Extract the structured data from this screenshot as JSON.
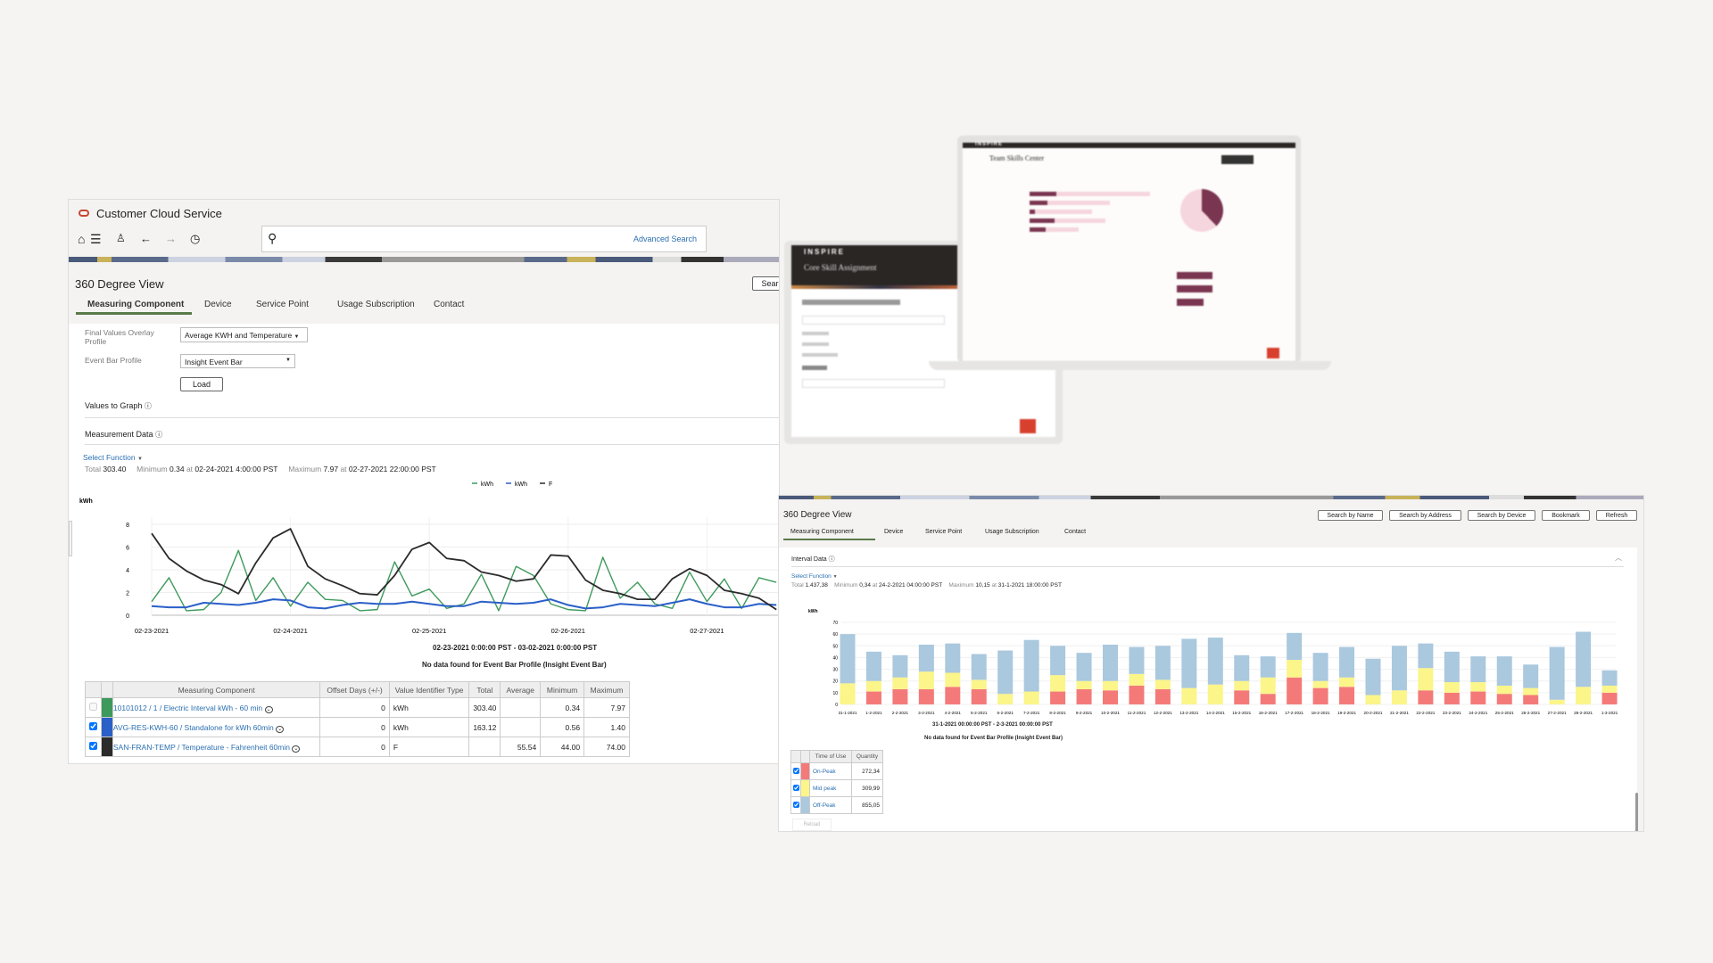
{
  "left_panel": {
    "app_title": "Customer Cloud Service",
    "search": {
      "placeholder": "",
      "advanced_search": "Advanced Search"
    },
    "page_title": "360 Degree View",
    "search_button_partial": "Sear",
    "tabs": [
      {
        "label": "Measuring Component",
        "active": true
      },
      {
        "label": "Device"
      },
      {
        "label": "Service Point"
      },
      {
        "label": "Usage Subscription"
      },
      {
        "label": "Contact"
      }
    ],
    "form": {
      "overlay_label": "Final Values Overlay Profile",
      "overlay_value": "Average KWH and Temperature",
      "event_bar_label": "Event Bar Profile",
      "event_bar_value": "Insight Event Bar",
      "load_button": "Load"
    },
    "values_to_graph": "Values to Graph",
    "measurement_data": "Measurement Data",
    "select_function": "Select Function",
    "summary": {
      "total_label": "Total",
      "total": "303.40",
      "min_label": "Minimum",
      "min": "0.34",
      "min_at": "at",
      "min_time": "02-24-2021 4:00:00 PST",
      "max_label": "Maximum",
      "max": "7.97",
      "max_at": "at",
      "max_time": "02-27-2021 22:00:00 PST"
    },
    "date_range": "02-23-2021 0:00:00 PST - 03-02-2021 0:00:00 PST",
    "no_data": "No data found for Event Bar Profile (Insight Event Bar)",
    "table": {
      "headers": [
        "Measuring Component",
        "Offset Days (+/-)",
        "Value Identifier Type",
        "Total",
        "Average",
        "Minimum",
        "Maximum"
      ],
      "rows": [
        {
          "checked": false,
          "color": "#3e9a5c",
          "name": "10101012 / 1 / Electric Interval kWh - 60 min",
          "offset": "0",
          "type": "kWh",
          "total": "303.40",
          "average": "",
          "min": "0.34",
          "max": "7.97"
        },
        {
          "checked": true,
          "color": "#2a5fc8",
          "name": "AVG-RES-KWH-60 / Standalone for kWh 60min",
          "offset": "0",
          "type": "kWh",
          "total": "163.12",
          "average": "",
          "min": "0.56",
          "max": "1.40"
        },
        {
          "checked": true,
          "color": "#2b2b2b",
          "name": "SAN-FRAN-TEMP / Temperature - Fahrenheit 60min",
          "offset": "0",
          "type": "F",
          "total": "",
          "average": "55.54",
          "min": "44.00",
          "max": "74.00"
        }
      ]
    }
  },
  "chart_data": [
    {
      "type": "line",
      "ylabel": "kWh",
      "ylim": [
        0,
        8
      ],
      "yticks": [
        0,
        2,
        4,
        6,
        8
      ],
      "xticks": [
        "02-23-2021",
        "02-24-2021",
        "02-25-2021",
        "02-26-2021",
        "02-27-2021"
      ],
      "x_start": "02-23-2021 00:00",
      "x_interval_hours": 3,
      "grid": true,
      "legend": "top-right",
      "series": [
        {
          "name": "kWh",
          "color": "#3e9a5c",
          "values": [
            1.2,
            3.3,
            0.4,
            0.5,
            2.0,
            5.7,
            1.3,
            3.3,
            0.8,
            2.9,
            1.4,
            1.3,
            0.4,
            0.5,
            4.7,
            1.7,
            2.3,
            0.6,
            1.0,
            3.6,
            0.4,
            4.3,
            3.5,
            1.0,
            0.5,
            0.4,
            5.1,
            1.5,
            2.9,
            1.0,
            0.6,
            3.8,
            1.2,
            3.2,
            0.6,
            3.3,
            2.9
          ]
        },
        {
          "name": "kWh",
          "color": "#2a5fc8",
          "values": [
            0.8,
            0.7,
            0.7,
            1.1,
            1.0,
            0.9,
            1.1,
            1.4,
            1.3,
            0.7,
            0.6,
            0.9,
            1.1,
            1.0,
            1.0,
            1.2,
            1.0,
            0.8,
            0.8,
            1.2,
            1.1,
            1.0,
            1.1,
            1.4,
            0.9,
            0.6,
            0.7,
            1.0,
            0.9,
            0.8,
            1.1,
            1.4,
            1.0,
            0.7,
            0.7,
            1.0,
            0.9
          ]
        },
        {
          "name": "F",
          "color": "#2b2b2b",
          "values": [
            7.2,
            5.0,
            3.9,
            3.1,
            2.7,
            1.9,
            4.6,
            6.8,
            7.6,
            4.3,
            3.2,
            2.6,
            1.9,
            1.8,
            3.5,
            5.8,
            6.4,
            5.0,
            4.8,
            3.8,
            3.5,
            3.0,
            3.2,
            5.3,
            5.2,
            3.1,
            2.2,
            1.9,
            1.4,
            1.4,
            3.2,
            4.1,
            3.5,
            2.2,
            1.9,
            1.5,
            0.5
          ]
        }
      ]
    },
    {
      "type": "bar",
      "stacked": true,
      "ylabel": "kWh",
      "ylim": [
        0,
        70
      ],
      "yticks": [
        0,
        10,
        20,
        30,
        40,
        50,
        60,
        70
      ],
      "grid": true,
      "categories": [
        "31-1-2021",
        "1-2-2021",
        "2-2-2021",
        "3-2-2021",
        "4-2-2021",
        "5-2-2021",
        "6-2-2021",
        "7-2-2021",
        "8-2-2021",
        "9-2-2021",
        "10-2-2021",
        "11-2-2021",
        "12-2-2021",
        "13-2-2021",
        "14-2-2021",
        "15-2-2021",
        "16-2-2021",
        "17-2-2021",
        "18-2-2021",
        "19-2-2021",
        "20-2-2021",
        "21-2-2021",
        "22-2-2021",
        "23-2-2021",
        "24-2-2021",
        "25-2-2021",
        "26-2-2021",
        "27-2-2021",
        "28-2-2021",
        "1-3-2021"
      ],
      "series": [
        {
          "name": "On-Peak",
          "color": "#f47a7a",
          "values": [
            0,
            11,
            13,
            13,
            15,
            13,
            0,
            0,
            11,
            13,
            12,
            16,
            13,
            0,
            0,
            12,
            9,
            23,
            14,
            15,
            0,
            0,
            12,
            10,
            11,
            9,
            8,
            0,
            0,
            10
          ]
        },
        {
          "name": "Mid peak",
          "color": "#fbf58a",
          "values": [
            18,
            9,
            10,
            15,
            12,
            8,
            9,
            11,
            14,
            7,
            8,
            10,
            8,
            14,
            17,
            8,
            14,
            15,
            6,
            8,
            8,
            12,
            19,
            9,
            8,
            7,
            6,
            4,
            15,
            6
          ]
        },
        {
          "name": "Off-Peak",
          "color": "#aac8de",
          "values": [
            42,
            25,
            19,
            23,
            25,
            22,
            37,
            44,
            25,
            24,
            31,
            23,
            29,
            42,
            40,
            22,
            18,
            23,
            24,
            26,
            31,
            38,
            21,
            26,
            22,
            25,
            20,
            45,
            47,
            13
          ]
        }
      ]
    }
  ],
  "right_panel": {
    "page_title": "360 Degree View",
    "buttons": [
      "Search by Name",
      "Search by Address",
      "Search by Device",
      "Bookmark",
      "Refresh"
    ],
    "tabs": [
      {
        "label": "Measuring Component",
        "active": true
      },
      {
        "label": "Device"
      },
      {
        "label": "Service Point"
      },
      {
        "label": "Usage Subscription"
      },
      {
        "label": "Contact"
      }
    ],
    "section": "Interval Data",
    "select_function": "Select Function",
    "summary": {
      "total_label": "Total",
      "total": "1.437,38",
      "min_label": "Minimum",
      "min": "0,34",
      "min_at": "at",
      "min_time": "24-2-2021 04:00:00 PST",
      "max_label": "Maximum",
      "max": "10,15",
      "max_at": "at",
      "max_time": "31-1-2021 18:00:00 PST"
    },
    "date_range": "31-1-2021 00:00:00 PST - 2-3-2021 00:00:00 PST",
    "no_data": "No data found for Event Bar Profile (Insight Event Bar)",
    "table": {
      "headers": [
        "Time of Use",
        "Quantity"
      ],
      "rows": [
        {
          "checked": true,
          "color": "#f47a7a",
          "name": "On-Peak",
          "qty": "272,34"
        },
        {
          "checked": true,
          "color": "#fbf58a",
          "name": "Mid peak",
          "qty": "309,99"
        },
        {
          "checked": true,
          "color": "#aac8de",
          "name": "Off-Peak",
          "qty": "855,05"
        }
      ]
    },
    "reload": "Reload"
  },
  "mockups": {
    "brand": "INSPIRE",
    "laptop_title": "Team Skills Center",
    "tablet_title": "Core Skill Assignment"
  }
}
